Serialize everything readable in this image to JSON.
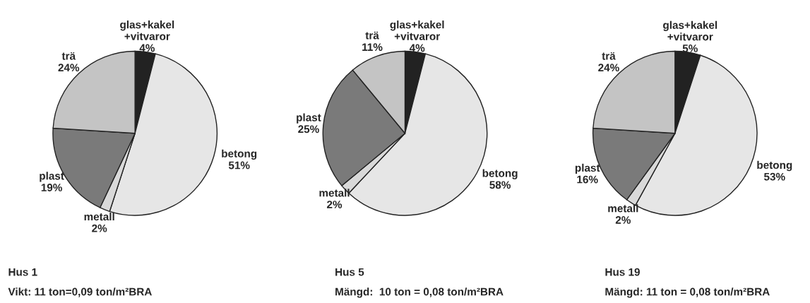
{
  "chart_data": [
    {
      "type": "pie",
      "categories": [
        "glas+kakel\n+vitvaror",
        "betong",
        "metall",
        "plast",
        "trä"
      ],
      "values": [
        4,
        51,
        2,
        19,
        24
      ],
      "value_labels": [
        "4%",
        "51%",
        "2%",
        "19%",
        "24%"
      ],
      "colors": [
        "#222222",
        "#e6e6e6",
        "#d9d9d9",
        "#7a7a7a",
        "#c4c4c4"
      ],
      "annotations": [
        "Hus 1",
        "Vikt: 11 ton=0,09 ton/m²BRA"
      ]
    },
    {
      "type": "pie",
      "categories": [
        "glas+kakel\n+vitvaror",
        "betong",
        "metall",
        "plast",
        "trä"
      ],
      "values": [
        4,
        58,
        2,
        25,
        11
      ],
      "value_labels": [
        "4%",
        "58%",
        "2%",
        "25%",
        "11%"
      ],
      "colors": [
        "#222222",
        "#e6e6e6",
        "#d9d9d9",
        "#7a7a7a",
        "#c4c4c4"
      ],
      "annotations": [
        "Hus 5",
        "Mängd:  10 ton = 0,08 ton/m²BRA"
      ]
    },
    {
      "type": "pie",
      "categories": [
        "glas+kakel\n+vitvaror",
        "betong",
        "metall",
        "plast",
        "trä"
      ],
      "values": [
        5,
        53,
        2,
        16,
        24
      ],
      "value_labels": [
        "5%",
        "53%",
        "2%",
        "16%",
        "24%"
      ],
      "colors": [
        "#222222",
        "#e6e6e6",
        "#d9d9d9",
        "#7a7a7a",
        "#c4c4c4"
      ],
      "annotations": [
        "Hus 19",
        "Mängd: 11 ton = 0,08 ton/m²BRA"
      ]
    }
  ]
}
